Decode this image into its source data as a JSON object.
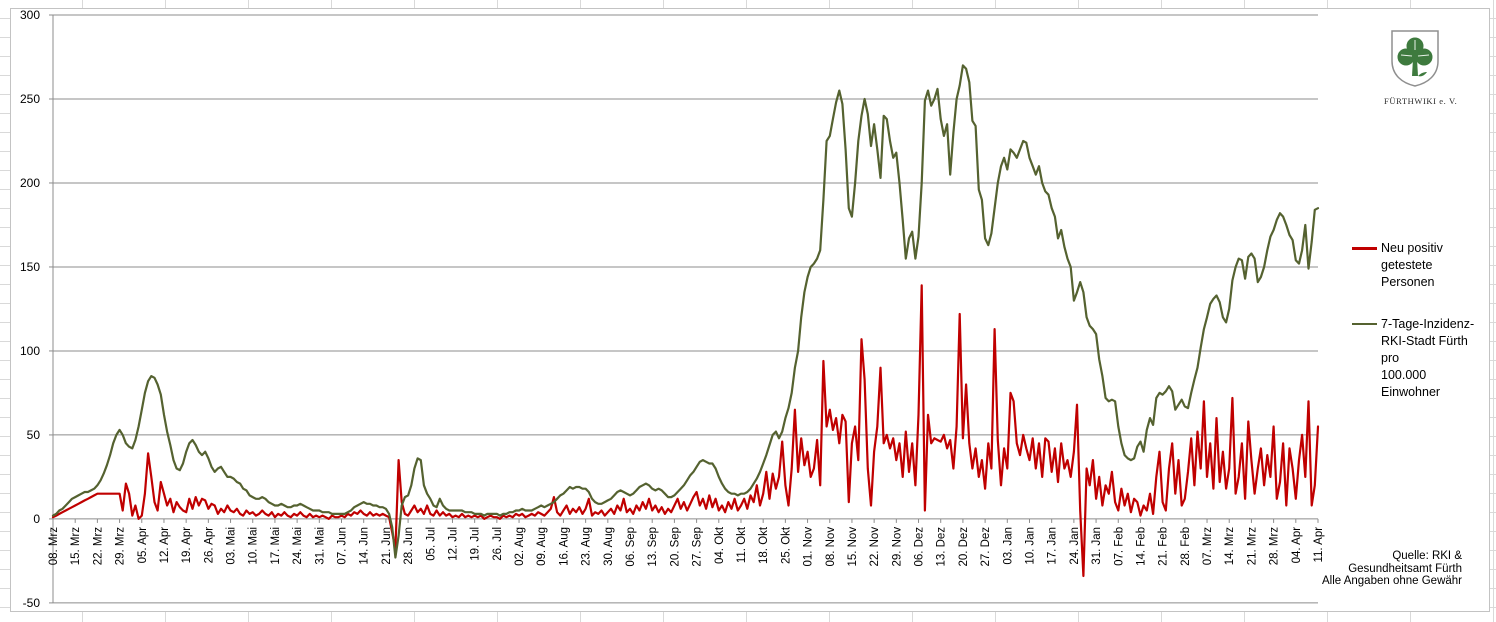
{
  "page": {
    "grid_color": "#d9d9d9"
  },
  "logo": {
    "caption": "FÜRTHWIKI e. V.",
    "clover_color": "#3e7a3e",
    "shield_outline": "#8f8f8f"
  },
  "legend": {
    "items": [
      {
        "color": "#c00000",
        "label_lines": [
          "Neu positiv",
          "getestete Personen"
        ]
      },
      {
        "color": "#556230",
        "label_lines": [
          "7-Tage-Inzidenz-",
          "RKI-Stadt Fürth pro",
          "100.000 Einwohner"
        ]
      }
    ]
  },
  "source_note": {
    "lines": [
      "Quelle: RKI &",
      "Gesundheitsamt Fürth",
      "Alle Angaben ohne Gewähr"
    ]
  },
  "chart_data": {
    "type": "line",
    "title": "",
    "xlabel": "",
    "ylabel": "",
    "ylim": [
      -50,
      300
    ],
    "yticks": [
      300,
      250,
      200,
      150,
      100,
      50,
      0,
      -50
    ],
    "grid": true,
    "legend_position": "right",
    "axis_color": "#8c8c8c",
    "x_tick_interval_days": 7,
    "x_tick_labels": [
      "08. Mrz",
      "15. Mrz",
      "22. Mrz",
      "29. Mrz",
      "05. Apr",
      "12. Apr",
      "19. Apr",
      "26. Apr",
      "03. Mai",
      "10. Mai",
      "17. Mai",
      "24. Mai",
      "31. Mai",
      "07. Jun",
      "14. Jun",
      "21. Jun",
      "28. Jun",
      "05. Jul",
      "12. Jul",
      "19. Jul",
      "26. Jul",
      "02. Aug",
      "09. Aug",
      "16. Aug",
      "23. Aug",
      "30. Aug",
      "06. Sep",
      "13. Sep",
      "20. Sep",
      "27. Sep",
      "04. Okt",
      "11. Okt",
      "18. Okt",
      "25. Okt",
      "01. Nov",
      "08. Nov",
      "15. Nov",
      "22. Nov",
      "29. Nov",
      "06. Dez",
      "13. Dez",
      "20. Dez",
      "27. Dez",
      "03. Jan",
      "10. Jan",
      "17. Jan",
      "24. Jan",
      "31. Jan",
      "07. Feb",
      "14. Feb",
      "21. Feb",
      "28. Feb",
      "07. Mrz",
      "14. Mrz",
      "21. Mrz",
      "28. Mrz",
      "04. Apr",
      "11. Apr"
    ],
    "series": [
      {
        "name": "Neu positiv getestete Personen",
        "color": "#c00000",
        "values": [
          1,
          2,
          3,
          4,
          5,
          6,
          7,
          8,
          9,
          10,
          11,
          12,
          13,
          14,
          15,
          15,
          15,
          15,
          15,
          15,
          15,
          15,
          5,
          21,
          15,
          2,
          8,
          0,
          2,
          15,
          39,
          25,
          10,
          5,
          22,
          15,
          8,
          12,
          4,
          10,
          7,
          5,
          4,
          12,
          6,
          13,
          8,
          12,
          11,
          6,
          9,
          8,
          3,
          6,
          4,
          8,
          5,
          4,
          6,
          3,
          2,
          5,
          3,
          4,
          2,
          3,
          5,
          3,
          2,
          4,
          1,
          3,
          2,
          4,
          2,
          1,
          3,
          2,
          4,
          2,
          1,
          3,
          1,
          2,
          1,
          2,
          1,
          0,
          2,
          1,
          1,
          2,
          1,
          3,
          2,
          4,
          3,
          5,
          3,
          2,
          4,
          2,
          3,
          2,
          3,
          2,
          1,
          -8,
          -18,
          35,
          10,
          3,
          2,
          5,
          8,
          4,
          6,
          3,
          8,
          3,
          2,
          5,
          2,
          4,
          2,
          3,
          1,
          2,
          1,
          3,
          1,
          2,
          1,
          2,
          1,
          2,
          0,
          1,
          2,
          1,
          1,
          0,
          2,
          1,
          2,
          1,
          3,
          2,
          3,
          1,
          2,
          3,
          2,
          4,
          3,
          2,
          4,
          6,
          13,
          4,
          2,
          5,
          8,
          3,
          6,
          4,
          7,
          3,
          6,
          12,
          2,
          4,
          3,
          5,
          2,
          4,
          6,
          3,
          8,
          5,
          12,
          4,
          6,
          3,
          8,
          5,
          10,
          6,
          12,
          5,
          8,
          4,
          7,
          3,
          6,
          4,
          8,
          12,
          6,
          10,
          5,
          9,
          13,
          16,
          8,
          12,
          6,
          14,
          7,
          12,
          5,
          8,
          4,
          10,
          6,
          12,
          5,
          8,
          12,
          6,
          14,
          10,
          20,
          8,
          15,
          28,
          12,
          27,
          18,
          25,
          46,
          20,
          8,
          30,
          65,
          28,
          48,
          32,
          40,
          25,
          30,
          47,
          20,
          94,
          55,
          65,
          53,
          60,
          45,
          62,
          58,
          10,
          45,
          55,
          35,
          107,
          83,
          30,
          8,
          40,
          55,
          90,
          45,
          50,
          42,
          48,
          35,
          45,
          25,
          52,
          28,
          45,
          20,
          62,
          139,
          5,
          62,
          45,
          48,
          47,
          46,
          50,
          42,
          47,
          30,
          55,
          122,
          48,
          80,
          45,
          30,
          42,
          25,
          35,
          18,
          45,
          30,
          113,
          47,
          20,
          42,
          30,
          75,
          70,
          45,
          38,
          50,
          42,
          35,
          48,
          30,
          45,
          25,
          48,
          46,
          28,
          42,
          22,
          45,
          30,
          35,
          25,
          40,
          68,
          5,
          -34,
          30,
          20,
          35,
          12,
          25,
          8,
          20,
          15,
          28,
          10,
          5,
          18,
          8,
          15,
          4,
          12,
          10,
          2,
          8,
          5,
          15,
          3,
          25,
          40,
          10,
          5,
          30,
          45,
          15,
          35,
          8,
          12,
          28,
          48,
          20,
          52,
          30,
          70,
          25,
          45,
          18,
          60,
          22,
          40,
          18,
          30,
          72,
          15,
          25,
          45,
          12,
          58,
          35,
          15,
          30,
          42,
          20,
          38,
          25,
          55,
          12,
          22,
          45,
          8,
          42,
          30,
          12,
          35,
          50,
          25,
          70,
          8,
          20,
          55
        ]
      },
      {
        "name": "7-Tage-Inzidenz-RKI-Stadt Fürth pro 100.000 Einwohner",
        "color": "#556230",
        "values": [
          2,
          3,
          5,
          6,
          8,
          10,
          12,
          13,
          14,
          15,
          16,
          16,
          17,
          18,
          20,
          23,
          27,
          32,
          38,
          45,
          50,
          53,
          50,
          45,
          43,
          42,
          47,
          55,
          65,
          75,
          82,
          85,
          84,
          80,
          74,
          62,
          52,
          44,
          35,
          30,
          29,
          33,
          40,
          45,
          47,
          44,
          40,
          38,
          40,
          36,
          31,
          28,
          30,
          31,
          28,
          25,
          25,
          24,
          22,
          21,
          18,
          17,
          14,
          13,
          12,
          12,
          13,
          12,
          10,
          9,
          8,
          8,
          9,
          8,
          7,
          7,
          8,
          8,
          9,
          8,
          7,
          6,
          5,
          5,
          5,
          4,
          4,
          4,
          3,
          3,
          3,
          3,
          3,
          4,
          5,
          7,
          8,
          9,
          10,
          9,
          9,
          8,
          8,
          7,
          7,
          6,
          3,
          -5,
          -23,
          -10,
          8,
          13,
          14,
          20,
          30,
          36,
          35,
          20,
          15,
          12,
          8,
          7,
          12,
          8,
          6,
          5,
          5,
          5,
          5,
          5,
          4,
          4,
          4,
          3,
          3,
          3,
          2,
          3,
          3,
          3,
          3,
          2,
          3,
          3,
          4,
          4,
          5,
          5,
          6,
          5,
          5,
          5,
          6,
          7,
          8,
          7,
          8,
          9,
          10,
          12,
          14,
          15,
          17,
          19,
          18,
          19,
          19,
          18,
          18,
          16,
          12,
          10,
          9,
          9,
          10,
          11,
          12,
          14,
          16,
          17,
          16,
          15,
          14,
          15,
          17,
          19,
          20,
          21,
          20,
          18,
          17,
          18,
          17,
          15,
          13,
          13,
          14,
          16,
          18,
          20,
          23,
          26,
          28,
          31,
          34,
          35,
          34,
          33,
          33,
          30,
          25,
          21,
          18,
          16,
          15,
          15,
          14,
          15,
          15,
          16,
          18,
          21,
          24,
          28,
          33,
          38,
          44,
          50,
          52,
          48,
          52,
          60,
          66,
          75,
          90,
          100,
          120,
          135,
          144,
          150,
          152,
          155,
          160,
          190,
          225,
          228,
          238,
          248,
          255,
          247,
          220,
          185,
          180,
          200,
          225,
          240,
          250,
          241,
          222,
          235,
          220,
          203,
          240,
          238,
          225,
          215,
          218,
          200,
          178,
          155,
          167,
          171,
          155,
          168,
          200,
          249,
          255,
          246,
          250,
          256,
          238,
          228,
          235,
          205,
          230,
          250,
          258,
          270,
          268,
          260,
          237,
          234,
          196,
          190,
          167,
          163,
          170,
          185,
          200,
          210,
          215,
          208,
          220,
          218,
          215,
          220,
          225,
          224,
          215,
          210,
          205,
          210,
          200,
          195,
          193,
          185,
          180,
          167,
          172,
          162,
          155,
          150,
          130,
          135,
          141,
          135,
          120,
          115,
          113,
          110,
          95,
          85,
          72,
          70,
          71,
          70,
          55,
          45,
          38,
          36,
          35,
          36,
          43,
          46,
          40,
          53,
          60,
          56,
          72,
          75,
          74,
          76,
          79,
          76,
          65,
          68,
          71,
          67,
          66,
          75,
          83,
          90,
          102,
          113,
          120,
          128,
          131,
          133,
          129,
          120,
          117,
          125,
          142,
          150,
          155,
          154,
          143,
          156,
          158,
          155,
          141,
          144,
          150,
          160,
          168,
          172,
          178,
          182,
          180,
          175,
          169,
          166,
          154,
          152,
          160,
          175,
          149,
          165,
          184,
          185
        ]
      }
    ]
  }
}
